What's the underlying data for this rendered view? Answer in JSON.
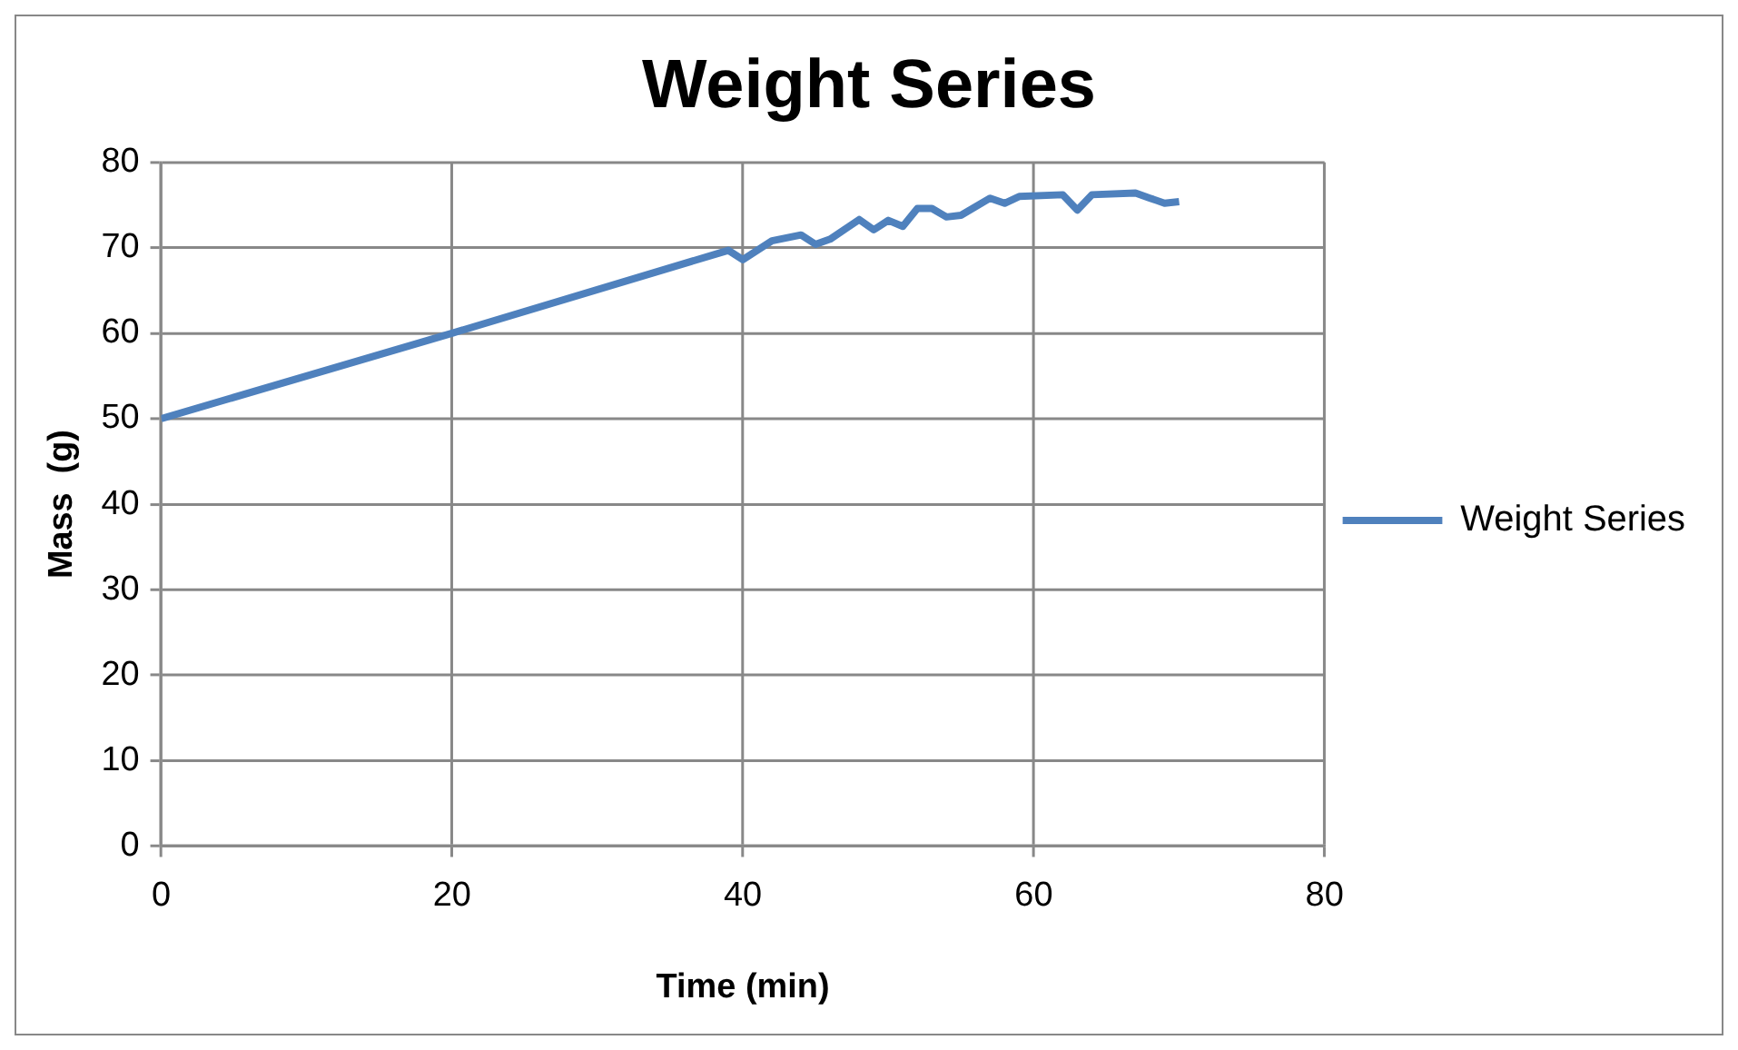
{
  "chart_data": {
    "type": "line",
    "title": "Weight Series",
    "xlabel": "Time (min)",
    "ylabel": "Mass  (g)",
    "series": [
      {
        "name": "Weight Series",
        "color": "#4f81bd",
        "x": [
          0,
          20,
          39,
          40,
          42,
          44,
          45,
          46,
          48,
          49,
          50,
          51,
          52,
          53,
          54,
          55,
          57,
          58,
          59,
          62,
          63,
          64,
          67,
          68,
          69,
          70
        ],
        "values": [
          50,
          60,
          69.7,
          68.6,
          70.8,
          71.5,
          70.4,
          71,
          73.3,
          72.1,
          73.2,
          72.5,
          74.6,
          74.6,
          73.6,
          73.8,
          75.8,
          75.2,
          76,
          76.2,
          74.4,
          76.2,
          76.4,
          75.8,
          75.2,
          75.4
        ]
      }
    ],
    "xlim": [
      0,
      80
    ],
    "xticks": [
      0,
      20,
      40,
      60,
      80
    ],
    "ylim": [
      0,
      80
    ],
    "yticks": [
      0,
      10,
      20,
      30,
      40,
      50,
      60,
      70,
      80
    ],
    "grid": true,
    "legend": "right",
    "marker": "none",
    "line_style": "solid"
  }
}
